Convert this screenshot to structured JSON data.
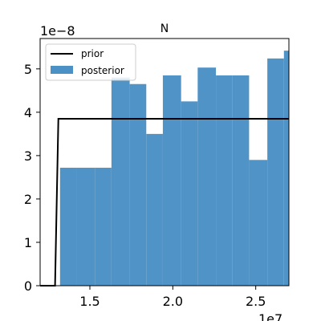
{
  "chart_data": {
    "type": "bar",
    "title": "N",
    "xlabel": "",
    "ylabel": "",
    "x_offset_label": "1e7",
    "y_offset_label": "1e−8",
    "xlim": [
      1.2,
      2.7
    ],
    "ylim": [
      0,
      5.7
    ],
    "x_ticks": [
      1.5,
      2.0,
      2.5
    ],
    "x_tick_labels": [
      "1.5",
      "2.0",
      "2.5"
    ],
    "y_ticks": [
      0,
      1,
      2,
      3,
      4,
      5
    ],
    "y_tick_labels": [
      "0",
      "1",
      "2",
      "3",
      "4",
      "5"
    ],
    "legend_position": "top-left",
    "series": [
      {
        "name": "posterior",
        "kind": "histogram",
        "color": "#4c91c5",
        "bins": [
          {
            "x0": 1.32,
            "x1": 1.42,
            "value": 2.72
          },
          {
            "x0": 1.42,
            "x1": 1.53,
            "value": 2.72
          },
          {
            "x0": 1.53,
            "x1": 1.63,
            "value": 2.72
          },
          {
            "x0": 1.63,
            "x1": 1.74,
            "value": 4.8
          },
          {
            "x0": 1.74,
            "x1": 1.84,
            "value": 4.65
          },
          {
            "x0": 1.84,
            "x1": 1.94,
            "value": 3.5
          },
          {
            "x0": 1.94,
            "x1": 2.05,
            "value": 4.85
          },
          {
            "x0": 2.05,
            "x1": 2.15,
            "value": 4.25
          },
          {
            "x0": 2.15,
            "x1": 2.26,
            "value": 5.03
          },
          {
            "x0": 2.26,
            "x1": 2.36,
            "value": 4.85
          },
          {
            "x0": 2.36,
            "x1": 2.46,
            "value": 4.85
          },
          {
            "x0": 2.46,
            "x1": 2.57,
            "value": 2.9
          },
          {
            "x0": 2.57,
            "x1": 2.67,
            "value": 5.24
          },
          {
            "x0": 2.67,
            "x1": 2.77,
            "value": 5.42
          }
        ]
      },
      {
        "name": "prior",
        "kind": "line",
        "color": "#000000",
        "x": [
          1.2,
          1.29,
          1.31,
          2.7
        ],
        "y": [
          0,
          0,
          3.85,
          3.85
        ]
      }
    ]
  }
}
